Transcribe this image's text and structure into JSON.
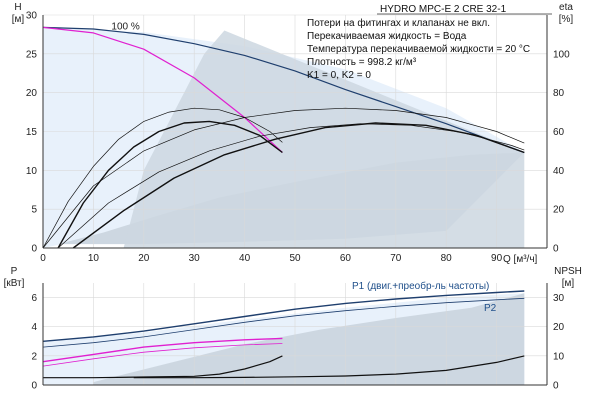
{
  "title": "HYDRO MPC-E 2 CRE 32-1",
  "info_lines": [
    "Потери на фитингах и клапанах не вкл.",
    "Перекачиваемая жидкость = Вода",
    "Температура перекачиваемой жидкости = 20 °C",
    "Плотность = 998.2 кг/м³",
    "K1 = 0, K2 = 0"
  ],
  "colors": {
    "curve_dark": "#1f3f6e",
    "curve_black": "#111111",
    "curve_magenta": "#e020d0",
    "fill_light": "#e8f1fb",
    "fill_grey": "#cdd7e1",
    "grid": "#d9d9d9",
    "axis": "#333333"
  },
  "chart_data": [
    {
      "type": "line",
      "name": "top",
      "xlabel": "Q [м³/ч]",
      "ylabel": "H [м]",
      "ylabel_right": "eta [%]",
      "xlim": [
        0,
        100
      ],
      "ylim": [
        0,
        30
      ],
      "ylim_right": [
        0,
        120
      ],
      "x_ticks": [
        0,
        10,
        20,
        30,
        40,
        50,
        60,
        70,
        80,
        90
      ],
      "y_ticks": [
        0,
        5,
        10,
        15,
        20,
        25,
        30
      ],
      "y_ticks_right": [
        0,
        20,
        40,
        60,
        80,
        100
      ],
      "annotations": [
        {
          "text": "100 %",
          "x": 10,
          "y": 28.5
        }
      ],
      "light_region": {
        "x": [
          0,
          20,
          40,
          60,
          80,
          95.5,
          0
        ],
        "y": [
          28.4,
          27.8,
          26,
          23,
          18,
          12.3,
          0
        ]
      },
      "grey_region": {
        "x": [
          3,
          12,
          22,
          35,
          50,
          70,
          85,
          95.5,
          80,
          60,
          40,
          20,
          5,
          3
        ],
        "y": [
          0.5,
          2,
          4,
          6.5,
          8.5,
          11,
          12,
          12.3,
          2.2,
          1.2,
          0.8,
          0.5,
          0.5,
          0.5
        ]
      },
      "grey_upper": {
        "x": [
          16,
          18,
          20,
          24,
          28,
          32,
          36
        ],
        "y": [
          0,
          5,
          10,
          15,
          20,
          25,
          28
        ]
      },
      "series": [
        {
          "role": "head_max",
          "color": "curve_dark",
          "width": 1.2,
          "x": [
            0,
            10,
            20,
            30,
            40,
            50,
            60,
            70,
            80,
            90,
            95.5
          ],
          "y": [
            28.4,
            28.2,
            27.5,
            26.3,
            24.8,
            22.8,
            20.4,
            18.2,
            16.0,
            13.6,
            12.3
          ]
        },
        {
          "role": "head_single",
          "color": "curve_magenta",
          "width": 1.2,
          "x": [
            0,
            10,
            20,
            30,
            40,
            47.5
          ],
          "y": [
            28.4,
            27.7,
            25.6,
            21.9,
            16.8,
            12.3
          ]
        },
        {
          "role": "eta_single_thin",
          "color": "curve_black",
          "width": 0.7,
          "x": [
            0,
            5,
            10,
            15,
            20,
            25,
            30,
            35,
            40,
            45,
            47.5
          ],
          "y": [
            0,
            6,
            10.5,
            14,
            16.3,
            17.5,
            18,
            17.8,
            16.8,
            15,
            13.6
          ]
        },
        {
          "role": "eta_single",
          "color": "curve_black",
          "width": 1.4,
          "x": [
            3,
            8,
            13,
            18,
            23,
            28,
            33,
            38,
            43,
            47.5
          ],
          "y": [
            0,
            5.8,
            10,
            13,
            15,
            16.1,
            16.3,
            15.8,
            14.5,
            12.3
          ]
        },
        {
          "role": "eta_double_thin",
          "color": "curve_black",
          "width": 0.7,
          "x": [
            0,
            10,
            20,
            30,
            40,
            50,
            60,
            70,
            80,
            90,
            95.5
          ],
          "y": [
            0,
            8,
            12.5,
            15.2,
            16.8,
            17.7,
            18,
            17.7,
            16.8,
            15,
            13.5
          ]
        },
        {
          "role": "eta_double_mid",
          "color": "curve_black",
          "width": 0.7,
          "x": [
            3,
            13,
            23,
            33,
            43,
            53,
            63,
            73,
            83,
            93,
            95.5
          ],
          "y": [
            0,
            5.8,
            9.8,
            12.5,
            14.4,
            15.5,
            16,
            15.8,
            14.9,
            13.2,
            12.6
          ]
        },
        {
          "role": "eta_double",
          "color": "curve_black",
          "width": 1.4,
          "x": [
            6,
            16,
            26,
            36,
            46,
            56,
            66,
            76,
            86,
            95.5
          ],
          "y": [
            0,
            4.8,
            9,
            12,
            14,
            15.5,
            16.1,
            15.8,
            14.5,
            12.3
          ]
        }
      ]
    },
    {
      "type": "line",
      "name": "bottom",
      "ylabel": "P [кВт]",
      "ylabel_right": "NPSH [м]",
      "xlim": [
        0,
        100
      ],
      "ylim": [
        0,
        7
      ],
      "ylim_right": [
        0,
        35
      ],
      "y_ticks": [
        0,
        2,
        4,
        6
      ],
      "y_ticks_right": [
        0,
        10,
        20,
        30
      ],
      "labels": {
        "P1": "P1 (двиг.+преобр-ль частоты)",
        "P2": "P2"
      },
      "light_region": {
        "x": [
          0,
          20,
          40,
          60,
          80,
          95.5,
          95.5,
          0
        ],
        "y": [
          3.0,
          3.6,
          4.5,
          5.3,
          6.0,
          6.3,
          0,
          0
        ]
      },
      "grey_region": {
        "x": [
          10,
          25,
          40,
          55,
          70,
          85,
          95.5,
          95.5,
          10
        ],
        "y": [
          0.2,
          1.5,
          2.8,
          3.8,
          4.6,
          5.3,
          6.3,
          0,
          0
        ]
      },
      "series": [
        {
          "role": "P1",
          "color": "curve_dark",
          "width": 1.4,
          "x": [
            0,
            10,
            20,
            30,
            40,
            50,
            60,
            70,
            80,
            90,
            95.5
          ],
          "y": [
            3.0,
            3.3,
            3.7,
            4.2,
            4.7,
            5.2,
            5.6,
            5.9,
            6.15,
            6.35,
            6.45
          ]
        },
        {
          "role": "P2",
          "color": "curve_dark",
          "width": 0.8,
          "x": [
            0,
            10,
            20,
            30,
            40,
            50,
            60,
            70,
            80,
            90,
            95.5
          ],
          "y": [
            2.6,
            2.9,
            3.3,
            3.8,
            4.3,
            4.75,
            5.1,
            5.4,
            5.65,
            5.85,
            5.95
          ]
        },
        {
          "role": "P1_single",
          "color": "curve_magenta",
          "width": 1.4,
          "x": [
            0,
            10,
            20,
            30,
            40,
            47.5
          ],
          "y": [
            1.6,
            2.1,
            2.6,
            2.9,
            3.1,
            3.2
          ]
        },
        {
          "role": "P2_single",
          "color": "curve_magenta",
          "width": 0.8,
          "x": [
            0,
            10,
            20,
            30,
            40,
            47.5
          ],
          "y": [
            1.3,
            1.8,
            2.25,
            2.55,
            2.75,
            2.85
          ]
        },
        {
          "role": "npsh_single",
          "color": "curve_black",
          "width": 1.2,
          "x": [
            0,
            10,
            20,
            30,
            35,
            40,
            45,
            47.5
          ],
          "y": [
            0.5,
            0.5,
            0.55,
            0.6,
            0.75,
            1.1,
            1.6,
            2.0
          ]
        },
        {
          "role": "npsh_double",
          "color": "curve_black",
          "width": 1.2,
          "x": [
            18,
            30,
            40,
            50,
            60,
            70,
            80,
            90,
            95.5
          ],
          "y": [
            0.5,
            0.5,
            0.52,
            0.56,
            0.62,
            0.75,
            1.0,
            1.55,
            2.0
          ]
        }
      ]
    }
  ]
}
